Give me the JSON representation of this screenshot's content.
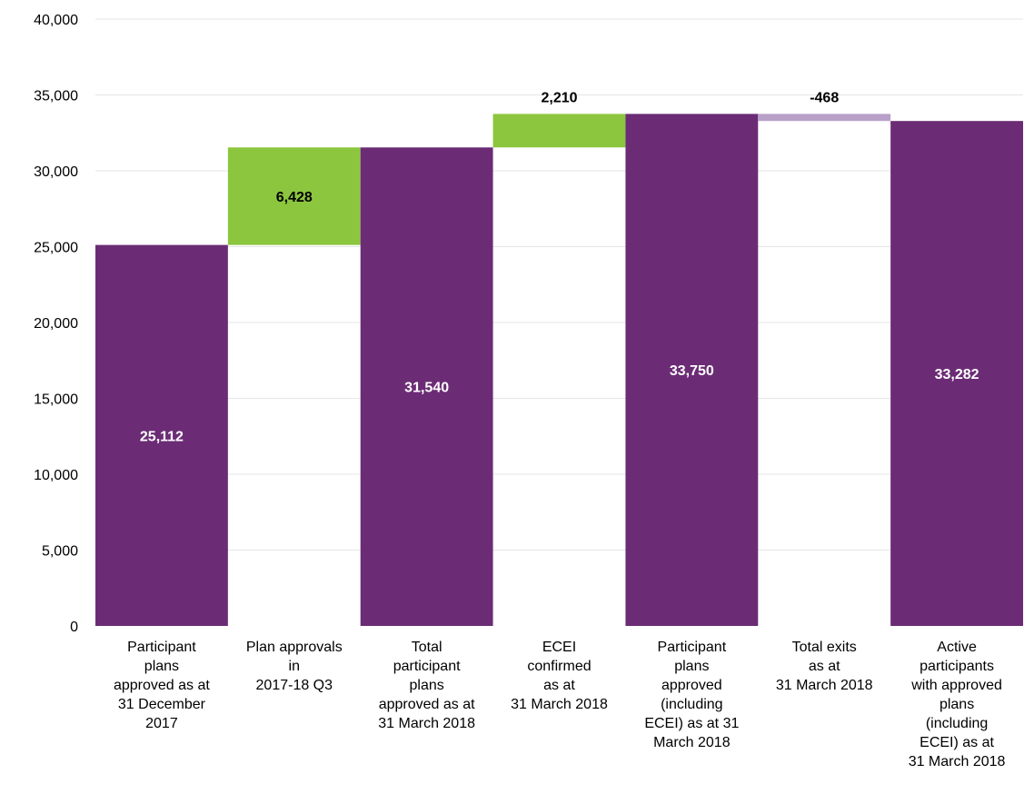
{
  "chart_data": {
    "type": "bar",
    "subtype": "waterfall",
    "title": "",
    "xlabel": "",
    "ylabel": "",
    "ylim": [
      0,
      40000
    ],
    "yticks": [
      0,
      5000,
      10000,
      15000,
      20000,
      25000,
      30000,
      35000,
      40000
    ],
    "ytick_labels": [
      "0",
      "5,000",
      "10,000",
      "15,000",
      "20,000",
      "25,000",
      "30,000",
      "35,000",
      "40,000"
    ],
    "grid": true,
    "legend": "none",
    "categories": [
      "Participant\nplans\napproved as at\n31 December\n2017",
      "Plan approvals\nin\n2017-18 Q3",
      "Total\nparticipant\nplans\napproved as at\n31 March 2018",
      "ECEI\nconfirmed\nas at\n31 March 2018",
      "Participant\nplans\napproved\n(including\nECEI) as at 31\nMarch 2018",
      "Total exits\nas at\n31 March 2018",
      "Active\nparticipants\nwith approved\nplans\n(including\nECEI) as at\n31 March 2018"
    ],
    "bars": [
      {
        "kind": "total",
        "base": 0,
        "value": 25112,
        "label": "25,112"
      },
      {
        "kind": "increase",
        "base": 25112,
        "value": 6428,
        "label": "6,428"
      },
      {
        "kind": "total",
        "base": 0,
        "value": 31540,
        "label": "31,540"
      },
      {
        "kind": "increase",
        "base": 31540,
        "value": 2210,
        "label": "2,210"
      },
      {
        "kind": "total",
        "base": 0,
        "value": 33750,
        "label": "33,750"
      },
      {
        "kind": "decrease",
        "base": 33750,
        "value": -468,
        "label": "-468"
      },
      {
        "kind": "total",
        "base": 0,
        "value": 33282,
        "label": "33,282"
      }
    ],
    "colors": {
      "total": "#6b2c75",
      "increase": "#8cc63f",
      "decrease": "#b8a0c8",
      "grid": "#e6e6e6",
      "total_label": "#ffffff",
      "delta_label": "#000000"
    }
  }
}
